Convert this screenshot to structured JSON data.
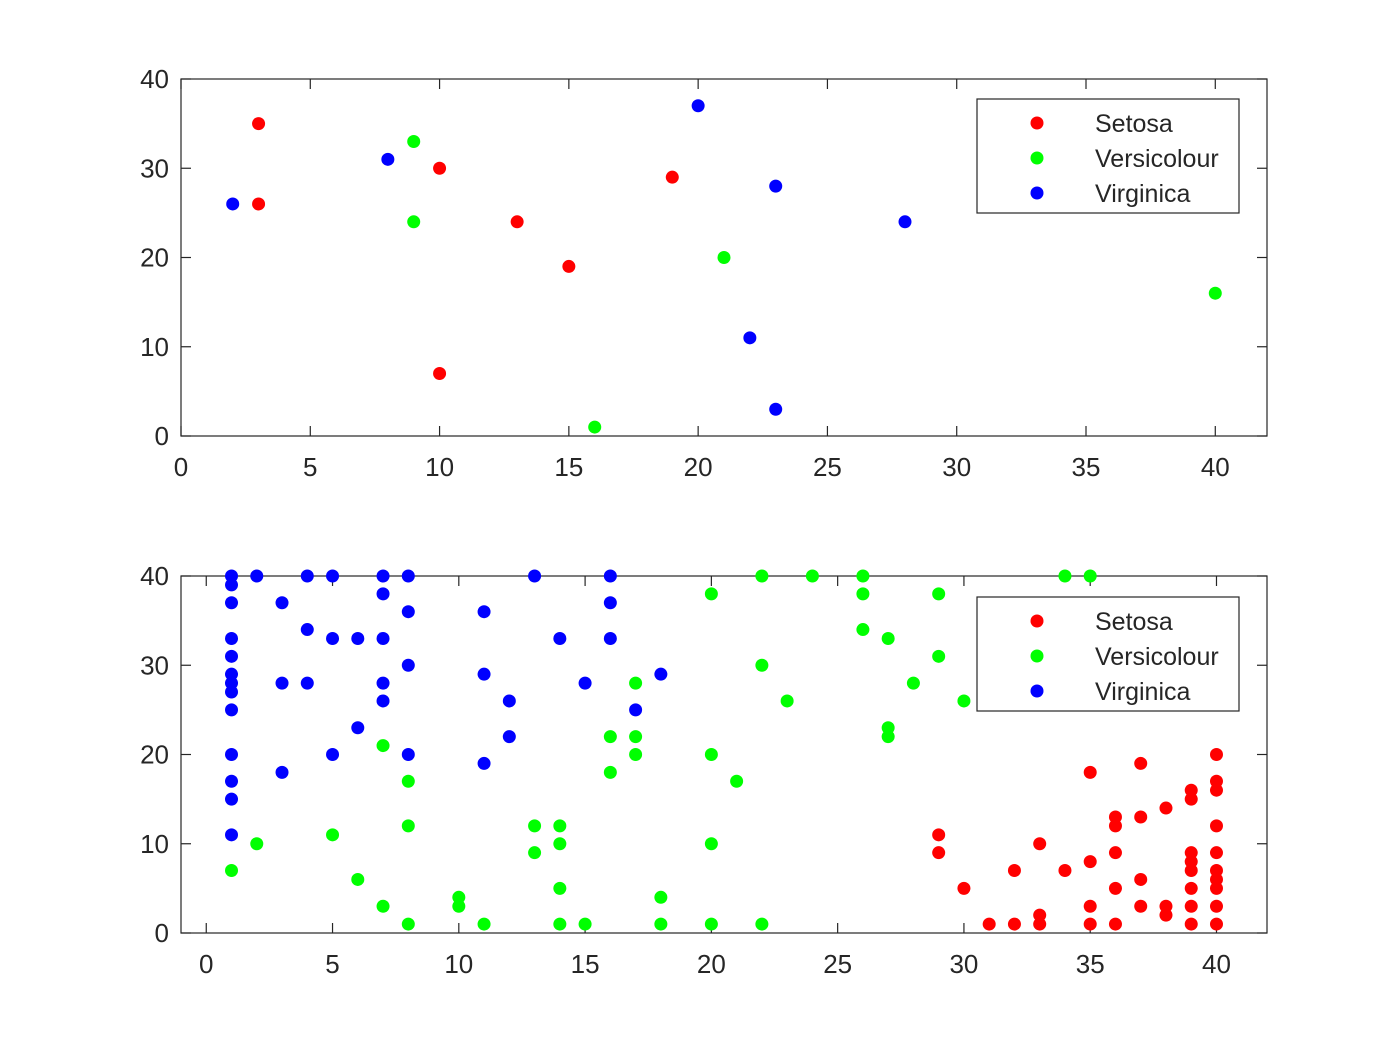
{
  "chart_data": [
    {
      "type": "scatter",
      "xlim": [
        0,
        42
      ],
      "ylim": [
        0,
        40
      ],
      "xticks": [
        0,
        5,
        10,
        15,
        20,
        25,
        30,
        35,
        40
      ],
      "yticks": [
        0,
        10,
        20,
        30,
        40
      ],
      "grid": false,
      "legend_position": "top-right",
      "series": [
        {
          "name": "Setosa",
          "color": "#ff0000",
          "points": [
            [
              3,
              35
            ],
            [
              3,
              26
            ],
            [
              10,
              30
            ],
            [
              10,
              7
            ],
            [
              13,
              24
            ],
            [
              15,
              19
            ],
            [
              19,
              29
            ]
          ]
        },
        {
          "name": "Versicolour",
          "color": "#00ff00",
          "points": [
            [
              9,
              33
            ],
            [
              9,
              24
            ],
            [
              16,
              1
            ],
            [
              21,
              20
            ],
            [
              40,
              16
            ]
          ]
        },
        {
          "name": "Virginica",
          "color": "#0000ff",
          "points": [
            [
              2,
              26
            ],
            [
              8,
              31
            ],
            [
              20,
              37
            ],
            [
              22,
              11
            ],
            [
              23,
              28
            ],
            [
              23,
              3
            ],
            [
              28,
              24
            ]
          ]
        }
      ]
    },
    {
      "type": "scatter",
      "xlim": [
        -1,
        42
      ],
      "ylim": [
        0,
        40
      ],
      "xticks": [
        0,
        5,
        10,
        15,
        20,
        25,
        30,
        35,
        40
      ],
      "yticks": [
        0,
        10,
        20,
        30,
        40
      ],
      "grid": false,
      "legend_position": "top-right",
      "series": [
        {
          "name": "Setosa",
          "color": "#ff0000",
          "points": [
            [
              29,
              11
            ],
            [
              29,
              9
            ],
            [
              30,
              5
            ],
            [
              31,
              1
            ],
            [
              32,
              1
            ],
            [
              32,
              7
            ],
            [
              33,
              10
            ],
            [
              33,
              2
            ],
            [
              33,
              1
            ],
            [
              34,
              7
            ],
            [
              35,
              18
            ],
            [
              35,
              8
            ],
            [
              35,
              3
            ],
            [
              35,
              1
            ],
            [
              36,
              13
            ],
            [
              36,
              12
            ],
            [
              36,
              9
            ],
            [
              36,
              5
            ],
            [
              36,
              1
            ],
            [
              37,
              19
            ],
            [
              37,
              13
            ],
            [
              37,
              6
            ],
            [
              37,
              3
            ],
            [
              38,
              14
            ],
            [
              38,
              3
            ],
            [
              38,
              2
            ],
            [
              39,
              16
            ],
            [
              39,
              15
            ],
            [
              39,
              9
            ],
            [
              39,
              8
            ],
            [
              39,
              7
            ],
            [
              39,
              5
            ],
            [
              39,
              3
            ],
            [
              39,
              1
            ],
            [
              40,
              20
            ],
            [
              40,
              17
            ],
            [
              40,
              16
            ],
            [
              40,
              12
            ],
            [
              40,
              9
            ],
            [
              40,
              7
            ],
            [
              40,
              6
            ],
            [
              40,
              5
            ],
            [
              40,
              3
            ],
            [
              40,
              1
            ]
          ]
        },
        {
          "name": "Versicolour",
          "color": "#00ff00",
          "points": [
            [
              1,
              7
            ],
            [
              2,
              10
            ],
            [
              5,
              11
            ],
            [
              6,
              6
            ],
            [
              7,
              21
            ],
            [
              7,
              3
            ],
            [
              8,
              17
            ],
            [
              8,
              12
            ],
            [
              8,
              1
            ],
            [
              10,
              4
            ],
            [
              10,
              3
            ],
            [
              11,
              1
            ],
            [
              13,
              12
            ],
            [
              13,
              9
            ],
            [
              14,
              12
            ],
            [
              14,
              10
            ],
            [
              14,
              5
            ],
            [
              14,
              1
            ],
            [
              15,
              1
            ],
            [
              16,
              22
            ],
            [
              16,
              18
            ],
            [
              17,
              28
            ],
            [
              17,
              22
            ],
            [
              17,
              20
            ],
            [
              18,
              4
            ],
            [
              18,
              1
            ],
            [
              20,
              38
            ],
            [
              20,
              20
            ],
            [
              20,
              10
            ],
            [
              20,
              1
            ],
            [
              21,
              17
            ],
            [
              22,
              40
            ],
            [
              22,
              30
            ],
            [
              22,
              1
            ],
            [
              23,
              26
            ],
            [
              24,
              40
            ],
            [
              26,
              40
            ],
            [
              26,
              38
            ],
            [
              26,
              34
            ],
            [
              27,
              33
            ],
            [
              27,
              23
            ],
            [
              27,
              22
            ],
            [
              28,
              28
            ],
            [
              29,
              38
            ],
            [
              29,
              31
            ],
            [
              30,
              26
            ],
            [
              34,
              40
            ],
            [
              35,
              40
            ]
          ]
        },
        {
          "name": "Virginica",
          "color": "#0000ff",
          "points": [
            [
              1,
              40
            ],
            [
              1,
              39
            ],
            [
              1,
              37
            ],
            [
              1,
              33
            ],
            [
              1,
              31
            ],
            [
              1,
              29
            ],
            [
              1,
              28
            ],
            [
              1,
              27
            ],
            [
              1,
              25
            ],
            [
              1,
              20
            ],
            [
              1,
              17
            ],
            [
              1,
              15
            ],
            [
              1,
              11
            ],
            [
              2,
              40
            ],
            [
              3,
              37
            ],
            [
              3,
              28
            ],
            [
              3,
              18
            ],
            [
              4,
              40
            ],
            [
              4,
              34
            ],
            [
              4,
              28
            ],
            [
              5,
              40
            ],
            [
              5,
              33
            ],
            [
              5,
              20
            ],
            [
              6,
              33
            ],
            [
              6,
              23
            ],
            [
              7,
              40
            ],
            [
              7,
              38
            ],
            [
              7,
              33
            ],
            [
              7,
              28
            ],
            [
              7,
              26
            ],
            [
              8,
              40
            ],
            [
              8,
              36
            ],
            [
              8,
              30
            ],
            [
              8,
              20
            ],
            [
              11,
              36
            ],
            [
              11,
              29
            ],
            [
              11,
              19
            ],
            [
              12,
              26
            ],
            [
              12,
              22
            ],
            [
              13,
              40
            ],
            [
              14,
              33
            ],
            [
              15,
              28
            ],
            [
              16,
              40
            ],
            [
              16,
              37
            ],
            [
              16,
              33
            ],
            [
              17,
              25
            ],
            [
              18,
              29
            ]
          ]
        }
      ]
    }
  ]
}
